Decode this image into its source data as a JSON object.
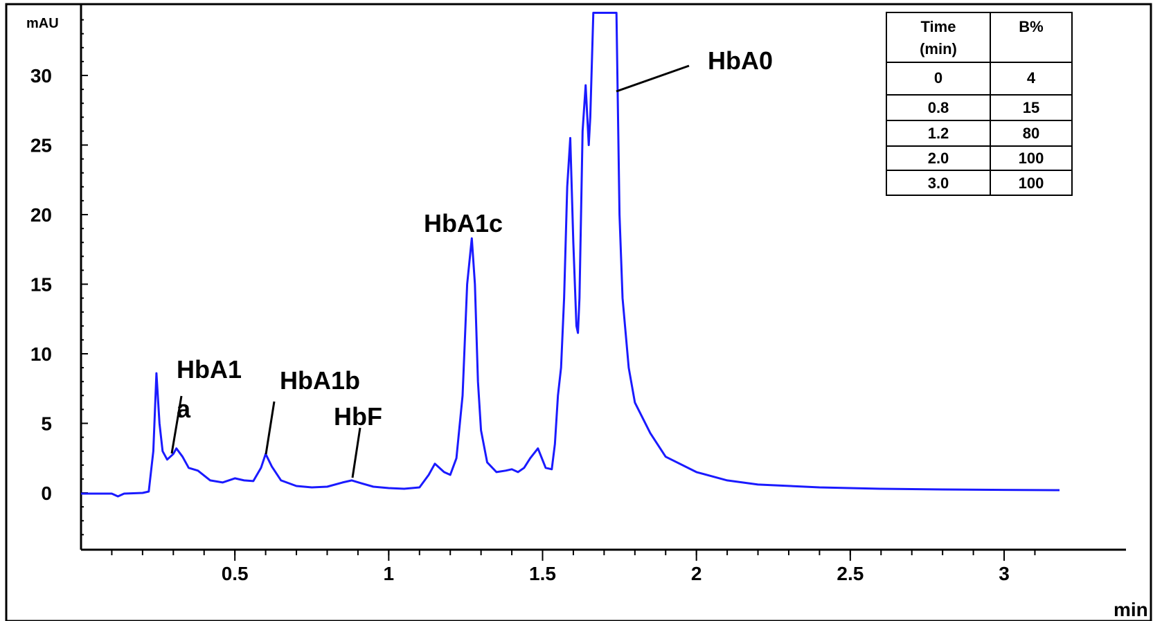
{
  "chart_data": {
    "type": "line",
    "title": "",
    "ylabel": "mAU",
    "xlabel": "min",
    "xlim": [
      0.0,
      3.18
    ],
    "ylim": [
      -3.5,
      34.5
    ],
    "grid": false,
    "line_color": "#1a1aff",
    "x_ticks": [
      0.5,
      1,
      1.5,
      2,
      2.5,
      3
    ],
    "x_tick_labels": [
      "0.5",
      "1",
      "1.5",
      "2",
      "2.5",
      "3"
    ],
    "y_ticks": [
      0,
      5,
      10,
      15,
      20,
      25,
      30
    ],
    "y_tick_labels": [
      "0",
      "5",
      "10",
      "15",
      "20",
      "25",
      "30"
    ],
    "series": [
      {
        "x": [
          0.0,
          0.05,
          0.1,
          0.12,
          0.14,
          0.2,
          0.22,
          0.235,
          0.245,
          0.255,
          0.265,
          0.28,
          0.3,
          0.31,
          0.33,
          0.35,
          0.38,
          0.42,
          0.46,
          0.5,
          0.53,
          0.56,
          0.585,
          0.6,
          0.62,
          0.65,
          0.7,
          0.75,
          0.8,
          0.85,
          0.88,
          0.91,
          0.95,
          1.0,
          1.05,
          1.1,
          1.13,
          1.15,
          1.18,
          1.2,
          1.22,
          1.24,
          1.255,
          1.27,
          1.28,
          1.29,
          1.3,
          1.32,
          1.35,
          1.38,
          1.4,
          1.42,
          1.44,
          1.46,
          1.485,
          1.51,
          1.53,
          1.54,
          1.55,
          1.56,
          1.57,
          1.58,
          1.59,
          1.6,
          1.61,
          1.615,
          1.62,
          1.63,
          1.64,
          1.65,
          1.655,
          1.665,
          1.675,
          1.74,
          1.75,
          1.76,
          1.78,
          1.8,
          1.85,
          1.9,
          2.0,
          2.1,
          2.2,
          2.4,
          2.6,
          2.8,
          3.0,
          3.18
        ],
        "y": [
          -0.05,
          -0.05,
          -0.05,
          -0.25,
          -0.05,
          0.0,
          0.1,
          3.0,
          8.6,
          5.0,
          3.0,
          2.4,
          2.8,
          3.2,
          2.6,
          1.8,
          1.6,
          0.9,
          0.75,
          1.05,
          0.9,
          0.85,
          1.8,
          2.8,
          1.9,
          0.9,
          0.5,
          0.4,
          0.45,
          0.75,
          0.9,
          0.7,
          0.45,
          0.35,
          0.3,
          0.4,
          1.3,
          2.1,
          1.5,
          1.3,
          2.5,
          7.0,
          15.0,
          18.3,
          15.0,
          8.0,
          4.5,
          2.2,
          1.5,
          1.6,
          1.7,
          1.5,
          1.8,
          2.5,
          3.2,
          1.8,
          1.7,
          3.5,
          7.0,
          9.0,
          14.0,
          22.0,
          25.5,
          18.0,
          12.0,
          11.5,
          14.0,
          26.0,
          29.3,
          25.0,
          27.0,
          34.5,
          34.5,
          34.5,
          20.0,
          14.0,
          9.0,
          6.5,
          4.3,
          2.6,
          1.5,
          0.9,
          0.6,
          0.4,
          0.3,
          0.25,
          0.22,
          0.2
        ]
      }
    ],
    "annotations": [
      {
        "text": "HbA1",
        "x": 0.3,
        "y": 3.2
      },
      {
        "text": "a",
        "x": 0.3,
        "y": 3.2
      },
      {
        "text": "HbA1b",
        "x": 0.6,
        "y": 2.8
      },
      {
        "text": "HbF",
        "x": 0.9,
        "y": 0.9
      },
      {
        "text": "HbA1c",
        "x": 1.27,
        "y": 18.3
      },
      {
        "text": "HbA0",
        "x": 1.75,
        "y": 28.0
      }
    ]
  },
  "gradient_table": {
    "headers": [
      "Time",
      "(min)",
      "B%"
    ],
    "rows": [
      [
        "0",
        "4"
      ],
      [
        "0.8",
        "15"
      ],
      [
        "1.2",
        "80"
      ],
      [
        "2.0",
        "100"
      ],
      [
        "3.0",
        "100"
      ]
    ]
  }
}
